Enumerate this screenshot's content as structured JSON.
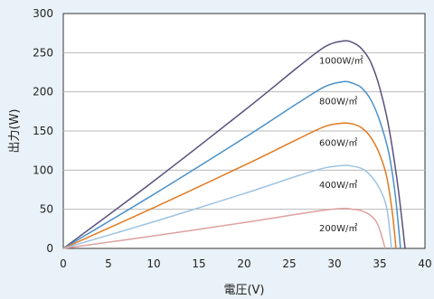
{
  "chart_data": {
    "type": "line",
    "xlabel": "電圧(V)",
    "ylabel": "出力(W)",
    "xlim": [
      0,
      40
    ],
    "ylim": [
      0,
      300
    ],
    "xticks": [
      0,
      5,
      10,
      15,
      20,
      25,
      30,
      35,
      40
    ],
    "yticks": [
      0,
      50,
      100,
      150,
      200,
      250,
      300
    ],
    "grid": "horizontal",
    "series": [
      {
        "name": "1000W/㎡",
        "color": "#5a4f7c",
        "points": [
          [
            0,
            0
          ],
          [
            10,
            86
          ],
          [
            20,
            176
          ],
          [
            26,
            232
          ],
          [
            29,
            258
          ],
          [
            31,
            265
          ],
          [
            32,
            263
          ],
          [
            33,
            255
          ],
          [
            34,
            238
          ],
          [
            35,
            205
          ],
          [
            36,
            155
          ],
          [
            37,
            80
          ],
          [
            37.8,
            0
          ]
        ]
      },
      {
        "name": "800W/㎡",
        "color": "#4a90c8",
        "points": [
          [
            0,
            0
          ],
          [
            10,
            69
          ],
          [
            20,
            141
          ],
          [
            26,
            186
          ],
          [
            29,
            207
          ],
          [
            31,
            213
          ],
          [
            32,
            211
          ],
          [
            33,
            205
          ],
          [
            34,
            190
          ],
          [
            35,
            163
          ],
          [
            36,
            122
          ],
          [
            36.7,
            70
          ],
          [
            37.3,
            0
          ]
        ]
      },
      {
        "name": "600W/㎡",
        "color": "#e07a20",
        "points": [
          [
            0,
            0
          ],
          [
            10,
            52
          ],
          [
            20,
            106
          ],
          [
            26,
            140
          ],
          [
            29,
            156
          ],
          [
            31,
            160
          ],
          [
            32,
            159
          ],
          [
            33,
            154
          ],
          [
            34,
            142
          ],
          [
            35,
            120
          ],
          [
            35.8,
            90
          ],
          [
            36.4,
            45
          ],
          [
            36.8,
            0
          ]
        ]
      },
      {
        "name": "400W/㎡",
        "color": "#9dc3e2",
        "points": [
          [
            0,
            0
          ],
          [
            10,
            34
          ],
          [
            20,
            70
          ],
          [
            26,
            93
          ],
          [
            29,
            103
          ],
          [
            31,
            106
          ],
          [
            32,
            105
          ],
          [
            33,
            102
          ],
          [
            34,
            93
          ],
          [
            35,
            76
          ],
          [
            35.8,
            50
          ],
          [
            36.3,
            0
          ]
        ]
      },
      {
        "name": "200W/㎡",
        "color": "#e0a0a0",
        "points": [
          [
            0,
            0
          ],
          [
            10,
            16
          ],
          [
            20,
            33
          ],
          [
            26,
            44
          ],
          [
            29,
            49
          ],
          [
            31,
            51
          ],
          [
            32,
            50
          ],
          [
            33,
            48
          ],
          [
            34,
            42
          ],
          [
            34.8,
            30
          ],
          [
            35.6,
            0
          ]
        ]
      }
    ]
  }
}
